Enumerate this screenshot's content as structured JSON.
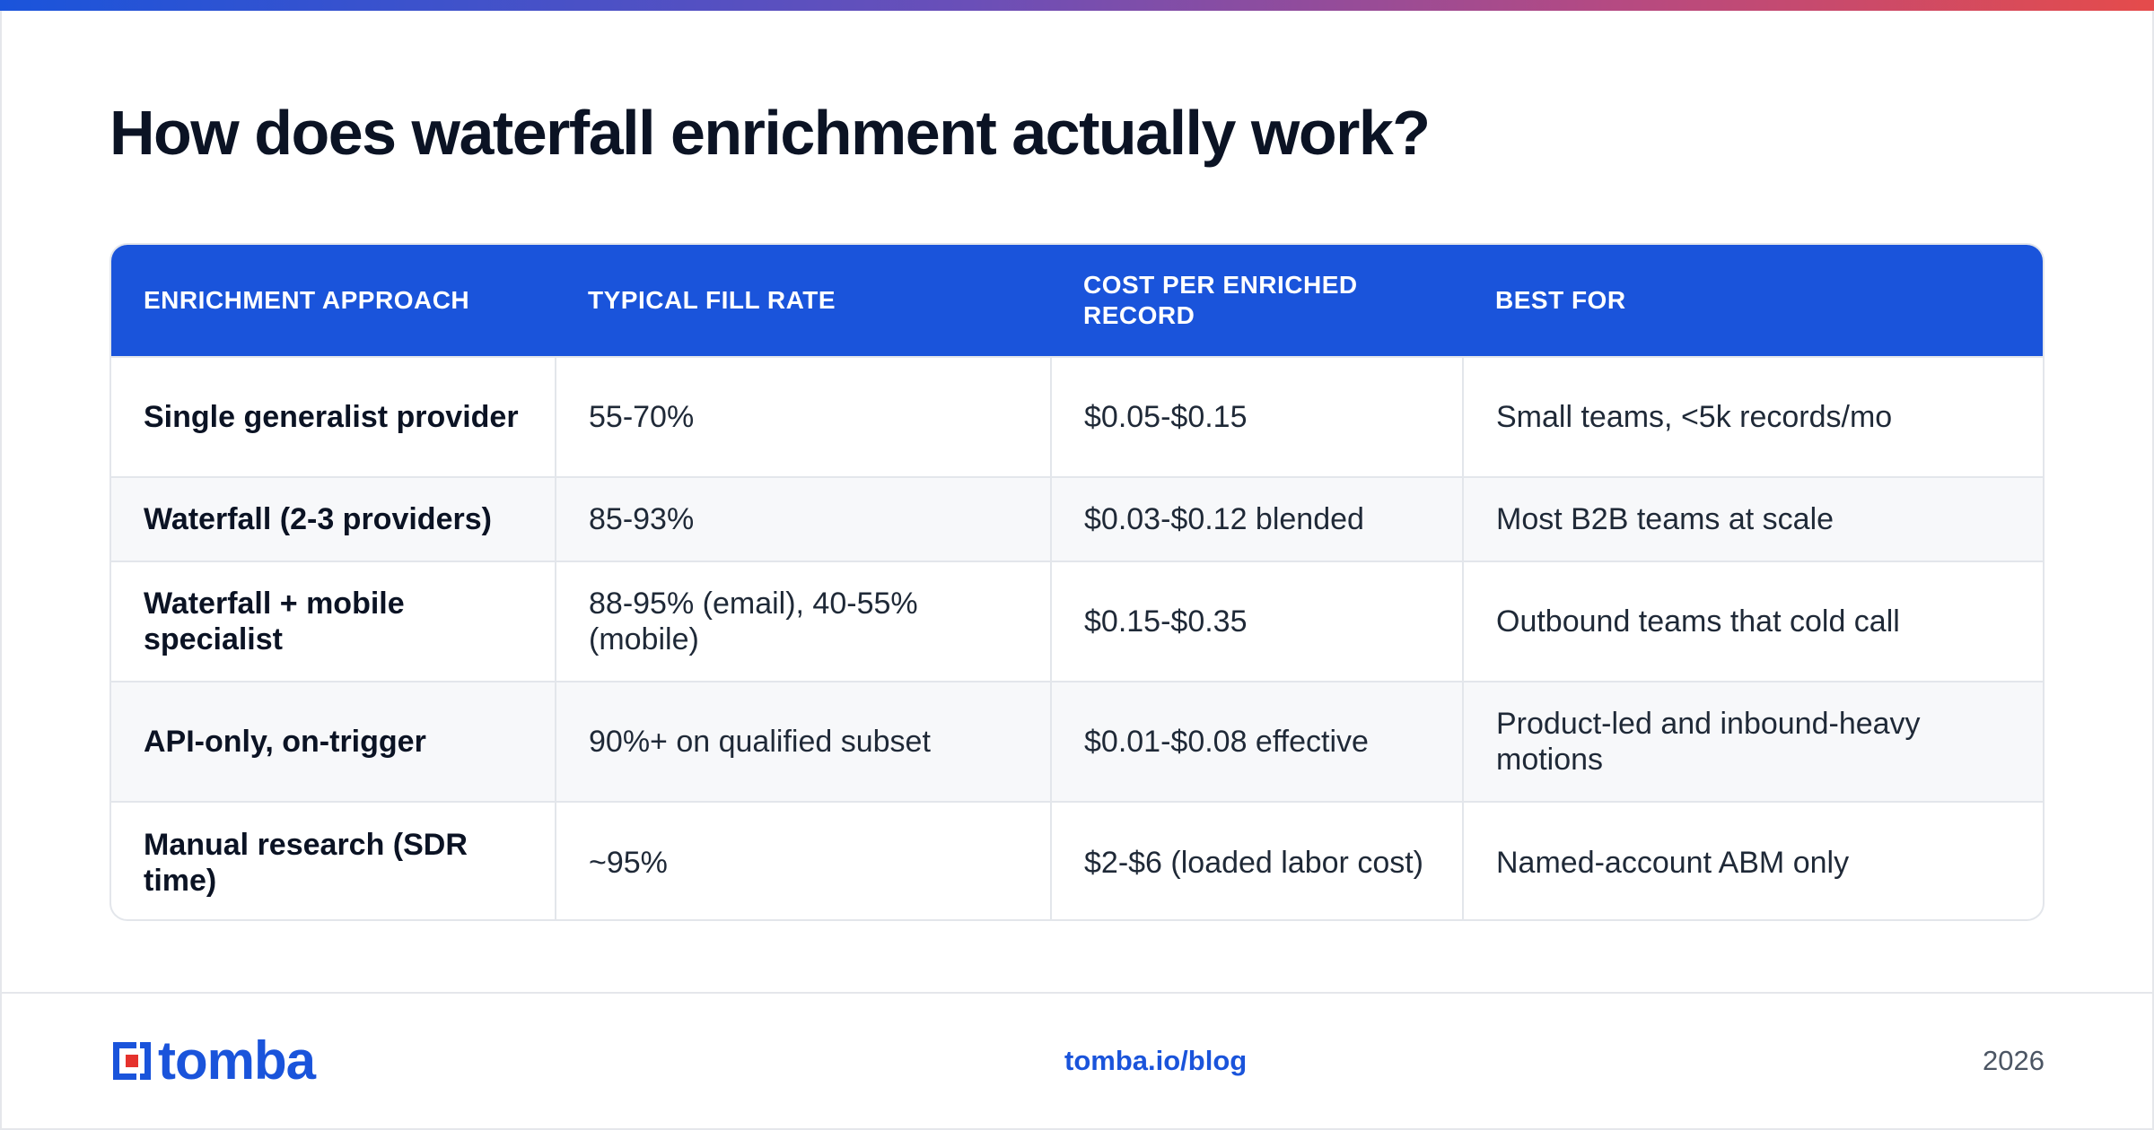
{
  "page": {
    "title": "How does waterfall enrichment actually work?"
  },
  "table": {
    "headers": [
      "ENRICHMENT APPROACH",
      "TYPICAL FILL RATE",
      "COST PER ENRICHED RECORD",
      "BEST FOR"
    ],
    "rows": [
      [
        "Single generalist provider",
        "55-70%",
        "$0.05-$0.15",
        "Small teams, <5k records/mo"
      ],
      [
        "Waterfall (2-3 providers)",
        "85-93%",
        "$0.03-$0.12 blended",
        "Most B2B teams at scale"
      ],
      [
        "Waterfall + mobile specialist",
        "88-95% (email), 40-55% (mobile)",
        "$0.15-$0.35",
        "Outbound teams that cold call"
      ],
      [
        "API-only, on-trigger",
        "90%+ on qualified subset",
        "$0.01-$0.08 effective",
        "Product-led and inbound-heavy motions"
      ],
      [
        "Manual research (SDR time)",
        "~95%",
        "$2-$6 (loaded labor cost)",
        "Named-account ABM only"
      ]
    ]
  },
  "footer": {
    "logo_text": "tomba",
    "link": "tomba.io/blog",
    "year": "2026"
  },
  "colors": {
    "brand_blue": "#1a54db",
    "logo_red": "#e5322d"
  },
  "icons": {
    "logo_mark": "tomba-logo-icon"
  }
}
